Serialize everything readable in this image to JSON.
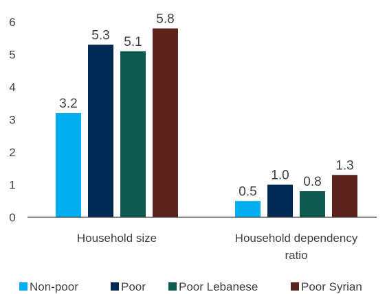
{
  "chart_data": {
    "type": "bar",
    "categories": [
      [
        "Household size"
      ],
      [
        "Household dependency",
        "ratio"
      ]
    ],
    "series": [
      {
        "name": "Non-poor",
        "color": "#00AEEF",
        "values": [
          3.2,
          0.5
        ]
      },
      {
        "name": "Poor",
        "color": "#002B55",
        "values": [
          5.3,
          1.0
        ]
      },
      {
        "name": "Poor Lebanese",
        "color": "#0F5A4E",
        "values": [
          5.1,
          0.8
        ]
      },
      {
        "name": "Poor Syrian",
        "color": "#5B241D",
        "values": [
          5.8,
          1.3
        ]
      }
    ],
    "data_labels": [
      [
        "3.2",
        "0.5"
      ],
      [
        "5.3",
        "1.0"
      ],
      [
        "5.1",
        "0.8"
      ],
      [
        "5.8",
        "1.3"
      ]
    ],
    "ylim": [
      0,
      6
    ],
    "yticks": [
      0,
      1,
      2,
      3,
      4,
      5,
      6
    ],
    "grid": false,
    "legend": "bottom",
    "title": "",
    "xlabel": "",
    "ylabel": ""
  }
}
